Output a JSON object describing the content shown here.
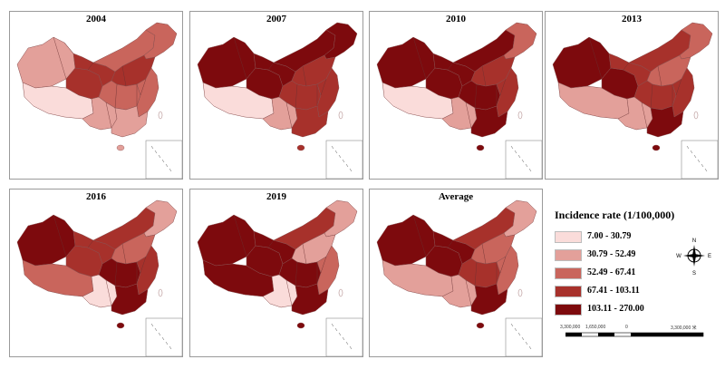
{
  "panels": [
    {
      "title": "2004",
      "class_by_region": {
        "xinjiang": 1,
        "tibet": 0,
        "qinghai": 3,
        "gansu": 3,
        "inner_mongolia": 2,
        "northeast": 2,
        "north": 3,
        "central": 2,
        "southwest": 1,
        "southeast": 2,
        "south": 1
      }
    },
    {
      "title": "2007",
      "class_by_region": {
        "xinjiang": 4,
        "tibet": 0,
        "qinghai": 4,
        "gansu": 4,
        "inner_mongolia": 4,
        "northeast": 4,
        "north": 3,
        "central": 3,
        "southwest": 1,
        "southeast": 3,
        "south": 3
      }
    },
    {
      "title": "2010",
      "class_by_region": {
        "xinjiang": 4,
        "tibet": 0,
        "qinghai": 4,
        "gansu": 4,
        "inner_mongolia": 4,
        "northeast": 2,
        "north": 3,
        "central": 4,
        "southwest": 1,
        "southeast": 3,
        "south": 4
      }
    },
    {
      "title": "2013",
      "class_by_region": {
        "xinjiang": 4,
        "tibet": 1,
        "qinghai": 4,
        "gansu": 3,
        "inner_mongolia": 3,
        "northeast": 2,
        "north": 2,
        "central": 3,
        "southwest": 1,
        "southeast": 3,
        "south": 4
      }
    },
    {
      "title": "2016",
      "class_by_region": {
        "xinjiang": 4,
        "tibet": 2,
        "qinghai": 3,
        "gansu": 3,
        "inner_mongolia": 3,
        "northeast": 1,
        "north": 2,
        "central": 4,
        "southwest": 0,
        "southeast": 3,
        "south": 4
      }
    },
    {
      "title": "2019",
      "class_by_region": {
        "xinjiang": 4,
        "tibet": 4,
        "qinghai": 4,
        "gansu": 4,
        "inner_mongolia": 3,
        "northeast": 1,
        "north": 1,
        "central": 4,
        "southwest": 0,
        "southeast": 2,
        "south": 4
      }
    },
    {
      "title": "Average",
      "class_by_region": {
        "xinjiang": 4,
        "tibet": 1,
        "qinghai": 4,
        "gansu": 4,
        "inner_mongolia": 3,
        "northeast": 1,
        "north": 2,
        "central": 3,
        "southwest": 1,
        "southeast": 2,
        "south": 4
      }
    }
  ],
  "legend": {
    "title": "Incidence rate (1/100,000)",
    "classes": [
      {
        "label": "7.00 - 30.79",
        "color": "#fadcda"
      },
      {
        "label": "30.79 - 52.49",
        "color": "#e3a09a"
      },
      {
        "label": "52.49 - 67.41",
        "color": "#c9655c"
      },
      {
        "label": "67.41 - 103.11",
        "color": "#a7312b"
      },
      {
        "label": "103.11 - 270.00",
        "color": "#7d0a0d"
      }
    ]
  },
  "compass": {
    "n": "N",
    "s": "S",
    "e": "E",
    "w": "W"
  },
  "scale": {
    "left": "3,300,000",
    "mid": "1,650,000",
    "zero": "0",
    "right": "3,300,000 米"
  }
}
